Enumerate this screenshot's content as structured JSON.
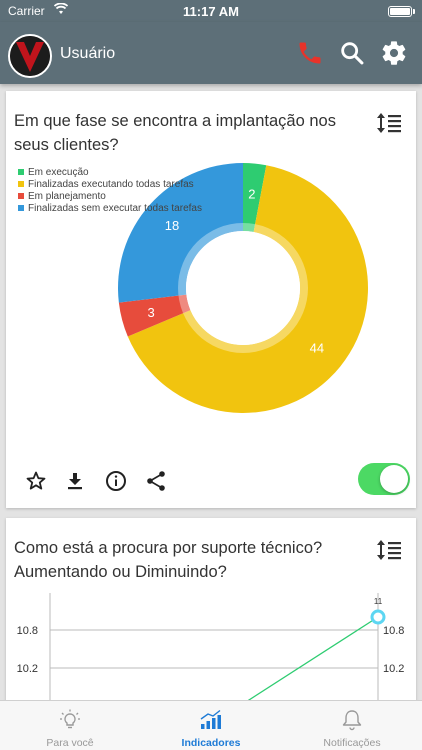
{
  "status": {
    "carrier": "Carrier",
    "time": "11:17 AM"
  },
  "header": {
    "user_name": "Usuário"
  },
  "colors": {
    "appbar": "#5d6f78",
    "green": "#2ecc71",
    "yellow": "#f1c40f",
    "red": "#e74c3c",
    "blue": "#3498db",
    "accent": "#1e7bd6"
  },
  "card1": {
    "title": "Em que fase se encontra a implantação nos seus clientes?",
    "chart_data": {
      "type": "pie",
      "categories": [
        "Em execução",
        "Finalizadas executando todas tarefas",
        "Em planejamento",
        "Finalizadas sem executar todas tarefas"
      ],
      "values": [
        2,
        44,
        3,
        18
      ],
      "colors": [
        "#2ecc71",
        "#f1c40f",
        "#e74c3c",
        "#3498db"
      ],
      "legend": "top-left"
    }
  },
  "card2": {
    "title": "Como está a procura por suporte técnico? Aumentando ou Diminuindo?",
    "chart_data": {
      "type": "line",
      "y_ticks": [
        "10.8",
        "10.2"
      ],
      "point_label": "11",
      "last_value": 11,
      "grid": true
    }
  },
  "tabs": [
    {
      "label": "Para você",
      "icon": "lightbulb-icon"
    },
    {
      "label": "Indicadores",
      "icon": "bar-chart-icon"
    },
    {
      "label": "Notificações",
      "icon": "bell-icon"
    }
  ]
}
